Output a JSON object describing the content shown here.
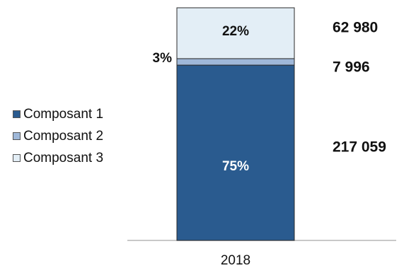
{
  "chart_data": {
    "type": "bar",
    "stacked": true,
    "categories": [
      "2018"
    ],
    "series": [
      {
        "name": "Composant 1",
        "value": 217059,
        "percent_label": "75%",
        "value_label": "217 059",
        "color": "#2a5b8f"
      },
      {
        "name": "Composant 2",
        "value": 7996,
        "percent_label": "3%",
        "value_label": "7 996",
        "color": "#9fb8d9"
      },
      {
        "name": "Composant 3",
        "value": 62980,
        "percent_label": "22%",
        "value_label": "62 980",
        "color": "#e3eef6"
      }
    ],
    "legend_position": "left",
    "grid": false
  }
}
